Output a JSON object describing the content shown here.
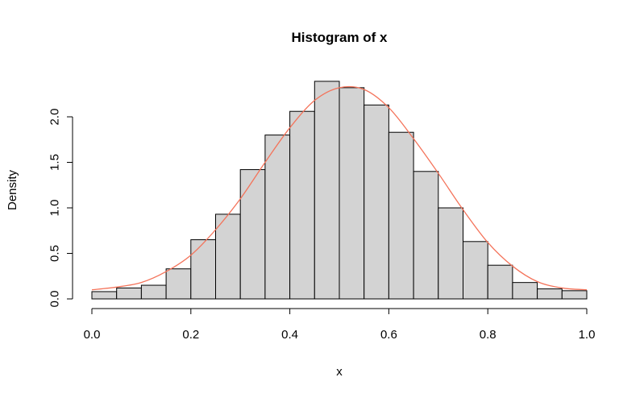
{
  "chart_data": {
    "type": "bar",
    "title": "Histogram of x",
    "xlabel": "x",
    "ylabel": "Density",
    "xlim": [
      0,
      1
    ],
    "ylim": [
      0,
      2.4
    ],
    "xticks": [
      0.0,
      0.2,
      0.4,
      0.6,
      0.8,
      1.0
    ],
    "xtick_labels": [
      "0.0",
      "0.2",
      "0.4",
      "0.6",
      "0.8",
      "1.0"
    ],
    "yticks": [
      0.0,
      0.5,
      1.0,
      1.5,
      2.0
    ],
    "ytick_labels": [
      "0.0",
      "0.5",
      "1.0",
      "1.5",
      "2.0"
    ],
    "bin_edges": [
      0.0,
      0.05,
      0.1,
      0.15,
      0.2,
      0.25,
      0.3,
      0.35,
      0.4,
      0.45,
      0.5,
      0.55,
      0.6,
      0.65,
      0.7,
      0.75,
      0.8,
      0.85,
      0.9,
      0.95,
      1.0
    ],
    "values": [
      0.08,
      0.12,
      0.15,
      0.33,
      0.65,
      0.93,
      1.42,
      1.8,
      2.06,
      2.39,
      2.32,
      2.13,
      1.83,
      1.4,
      1.0,
      0.63,
      0.37,
      0.18,
      0.11,
      0.09
    ],
    "curve": {
      "x": [
        0.0,
        0.05,
        0.1,
        0.15,
        0.2,
        0.25,
        0.3,
        0.35,
        0.4,
        0.45,
        0.5,
        0.55,
        0.6,
        0.65,
        0.7,
        0.75,
        0.8,
        0.85,
        0.9,
        0.95,
        1.0
      ],
      "y": [
        0.1,
        0.13,
        0.18,
        0.3,
        0.48,
        0.76,
        1.1,
        1.5,
        1.88,
        2.18,
        2.32,
        2.3,
        2.1,
        1.76,
        1.38,
        0.98,
        0.62,
        0.36,
        0.19,
        0.12,
        0.1
      ]
    },
    "grid": false,
    "colors": {
      "bar_fill": "#d3d3d3",
      "bar_edge": "#000000",
      "curve": "#f4735a"
    }
  }
}
